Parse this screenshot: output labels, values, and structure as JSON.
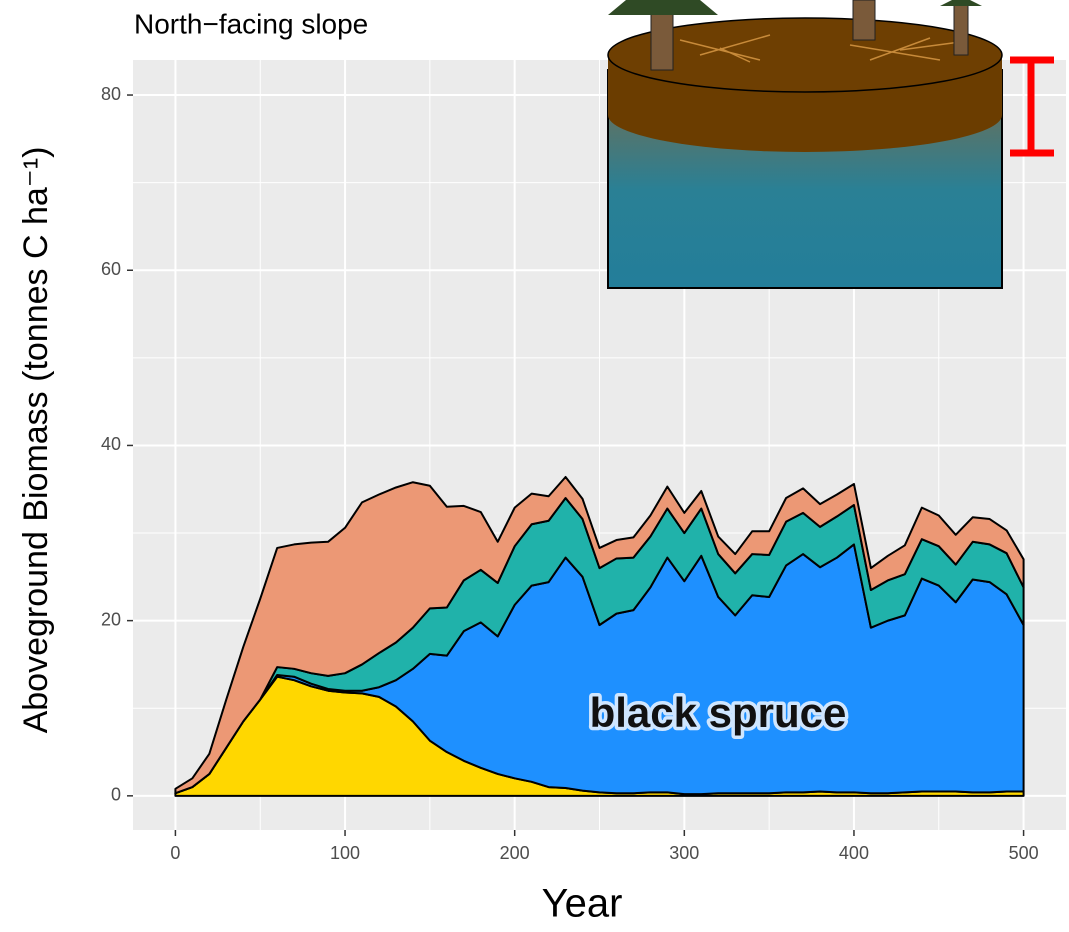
{
  "chart_data": {
    "type": "stacked_area",
    "title": "North−facing slope",
    "x_label": "Year",
    "y_label": "Aboveground Biomass (tonnes C ha⁻¹)",
    "annotation": "black spruce",
    "x": [
      0,
      10,
      20,
      30,
      40,
      50,
      60,
      70,
      80,
      90,
      100,
      110,
      120,
      130,
      140,
      150,
      160,
      170,
      180,
      190,
      200,
      210,
      220,
      230,
      240,
      250,
      260,
      270,
      280,
      290,
      300,
      310,
      320,
      330,
      340,
      350,
      360,
      370,
      380,
      390,
      400,
      410,
      420,
      430,
      440,
      450,
      460,
      470,
      480,
      490,
      500
    ],
    "series": [
      {
        "color": "#FFD700",
        "values": [
          0.3,
          1,
          2.5,
          5.5,
          8.5,
          11,
          13.6,
          13.2,
          12.5,
          12,
          11.8,
          11.7,
          11.3,
          10.2,
          8.5,
          6.3,
          5,
          4,
          3.2,
          2.5,
          2,
          1.6,
          1,
          0.9,
          0.6,
          0.4,
          0.3,
          0.3,
          0.4,
          0.4,
          0.2,
          0.2,
          0.3,
          0.3,
          0.3,
          0.3,
          0.4,
          0.4,
          0.5,
          0.4,
          0.4,
          0.3,
          0.3,
          0.4,
          0.5,
          0.5,
          0.5,
          0.4,
          0.4,
          0.5,
          0.5
        ]
      },
      {
        "color": "#1E90FF",
        "values": [
          0,
          0,
          0,
          0,
          0,
          0,
          0.2,
          0.4,
          0.3,
          0.2,
          0.2,
          0.3,
          1.1,
          3,
          6,
          9.9,
          11,
          14.8,
          16.6,
          15.7,
          19.8,
          22.4,
          23.4,
          26.3,
          24.4,
          19.1,
          20.5,
          20.9,
          23.4,
          26.8,
          24.3,
          27.2,
          22.4,
          20.3,
          22.6,
          22.4,
          25.9,
          27.2,
          25.6,
          26.8,
          28.3,
          18.9,
          19.7,
          20.2,
          24.3,
          23.5,
          21.6,
          24.3,
          24,
          22.5,
          19
        ]
      },
      {
        "color": "#20B2AA",
        "values": [
          0,
          0,
          0,
          0,
          0,
          0,
          0.9,
          0.9,
          1.2,
          1.5,
          2,
          3,
          3.9,
          4.3,
          4.7,
          5.2,
          5.5,
          5.8,
          6,
          6.1,
          6.7,
          7,
          7,
          6.8,
          6.6,
          6.5,
          6.3,
          6,
          5.8,
          5.6,
          5.5,
          5.4,
          4.9,
          4.8,
          4.7,
          4.8,
          5,
          4.7,
          4.6,
          4.7,
          4.5,
          4.3,
          4.6,
          4.7,
          4.5,
          4.5,
          4.3,
          4.3,
          4.3,
          4.7,
          4.3
        ]
      },
      {
        "color": "#EC9875",
        "values": [
          0.5,
          1,
          2.3,
          5.5,
          8.5,
          11.5,
          13.6,
          14.2,
          14.9,
          15.3,
          16.6,
          18.5,
          18.1,
          17.7,
          16.6,
          14,
          11.5,
          8.5,
          6.6,
          4.7,
          4.4,
          3.5,
          2.8,
          2.4,
          2.3,
          2.3,
          2.1,
          2.3,
          2.4,
          2.5,
          2.3,
          2,
          2,
          2.2,
          2.6,
          2.7,
          2.7,
          2.8,
          2.6,
          2.5,
          2.4,
          2.5,
          2.8,
          3.3,
          3.6,
          3.5,
          3.4,
          2.8,
          2.9,
          2.6,
          3.2
        ]
      }
    ],
    "xlim": [
      -25,
      525
    ],
    "ylim": [
      -3.9,
      84
    ],
    "xticks": [
      0,
      100,
      200,
      300,
      400,
      500
    ],
    "yticks": [
      0,
      20,
      40,
      60,
      80
    ],
    "grid": true
  }
}
